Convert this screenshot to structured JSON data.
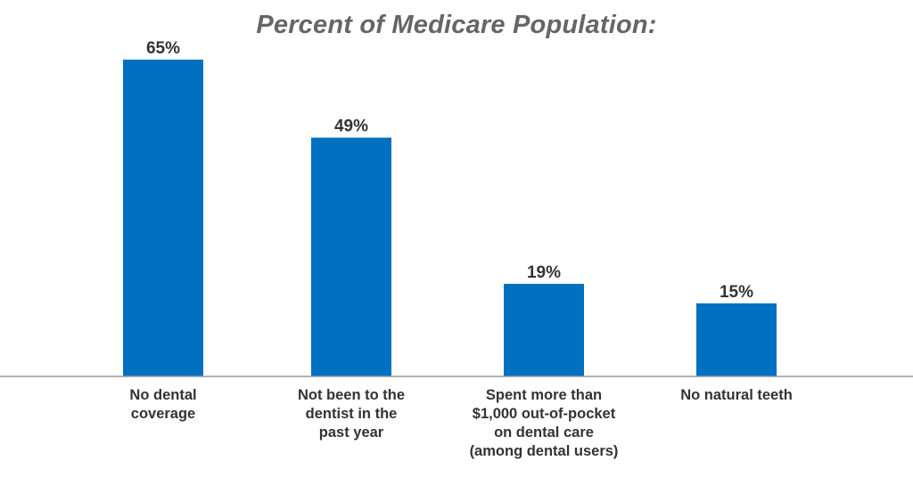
{
  "chart_data": {
    "type": "bar",
    "title": "Percent of Medicare Population:",
    "categories": [
      [
        "No dental",
        "coverage"
      ],
      [
        "Not been to the",
        "dentist in the",
        "past year"
      ],
      [
        "Spent more than",
        "$1,000 out-of-pocket",
        "on dental care",
        "(among dental users)"
      ],
      [
        "No natural teeth"
      ]
    ],
    "values": [
      65,
      49,
      19,
      15
    ],
    "data_labels": [
      "65%",
      "49%",
      "19%",
      "15%"
    ],
    "ylim": [
      0,
      70
    ],
    "grid": false,
    "legend": "none",
    "colors": {
      "bar": "#0070C0",
      "baseline": "#999999",
      "title": "#666666",
      "text": "#333333"
    }
  }
}
